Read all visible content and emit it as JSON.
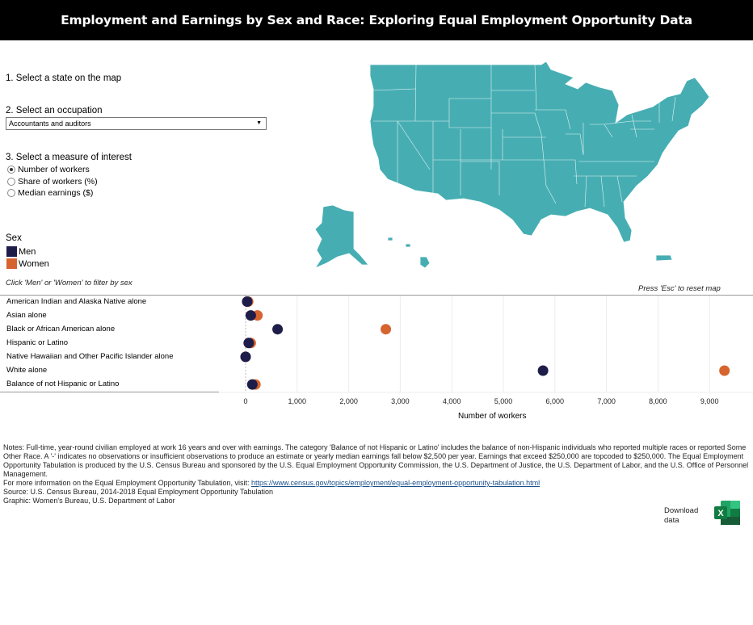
{
  "header": {
    "title": "Employment and Earnings by Sex and Race: Exploring Equal Employment Opportunity Data"
  },
  "controls": {
    "step1": "1. Select a state on the map",
    "step2": "2. Select an occupation",
    "occupation_selected": "Accountants and auditors",
    "step3": "3. Select a measure of interest",
    "measures": [
      {
        "label": "Number of workers",
        "selected": true
      },
      {
        "label": "Share of workers (%)",
        "selected": false
      },
      {
        "label": "Median earnings ($)",
        "selected": false
      }
    ]
  },
  "legend": {
    "title": "Sex",
    "items": [
      {
        "label": "Men",
        "color": "#1e1d4a"
      },
      {
        "label": "Women",
        "color": "#d5642f"
      }
    ],
    "hint": "Click 'Men' or 'Women' to filter by sex"
  },
  "map": {
    "fill_color": "#46aeb3",
    "border_color": "#ffffff",
    "reset_hint": "Press 'Esc' to reset map"
  },
  "chart_data": {
    "type": "scatter",
    "title": "",
    "xlabel": "Number of workers",
    "ylabel": "",
    "xlim": [
      -500,
      9700
    ],
    "x_ticks": [
      0,
      1000,
      2000,
      3000,
      4000,
      5000,
      6000,
      7000,
      8000,
      9000
    ],
    "x_tick_labels": [
      "0",
      "1,000",
      "2,000",
      "3,000",
      "4,000",
      "5,000",
      "6,000",
      "7,000",
      "8,000",
      "9,000"
    ],
    "grid": true,
    "categories": [
      "American Indian and Alaska Native alone",
      "Asian alone",
      "Black or African American alone",
      "Hispanic or Latino",
      "Native Hawaiian and Other Pacific Islander alone",
      "White alone",
      "Balance of not Hispanic or Latino"
    ],
    "series": [
      {
        "name": "Women",
        "color": "#d5642f",
        "values": [
          50,
          230,
          2720,
          100,
          0,
          9290,
          190
        ]
      },
      {
        "name": "Men",
        "color": "#1e1d4a",
        "values": [
          30,
          100,
          620,
          60,
          0,
          5770,
          130
        ]
      }
    ]
  },
  "notes": {
    "line1": "Notes: Full-time, year-round civilian employed at work 16 years and over with earnings. The category 'Balance of not Hispanic or Latino' includes the balance of non-Hispanic individuals who reported multiple races or reported Some Other Race. A '-' indicates no observations or insufficient observations to produce an estimate or yearly median earnings fall below $2,500 per year. Earnings that exceed $250,000 are topcoded to $250,000. The Equal Employment Opportunity Tabulation is produced by the U.S. Census Bureau and sponsored by the U.S. Equal Employment Opportunity Commission, the U.S. Department of Justice, the U.S. Department of Labor, and the U.S. Office of Personnel Management.",
    "more_info_prefix": "For more information on the Equal Employment Opportunity Tabulation, visit: ",
    "more_info_link": "https://www.census.gov/topics/employment/equal-employment-opportunity-tabulation.html",
    "source": "Source: U.S. Census Bureau, 2014-2018 Equal Employment Opportunity Tabulation",
    "graphic": "Graphic: Women's Bureau, U.S. Department of Labor"
  },
  "download": {
    "label_line1": "Download",
    "label_line2": "data",
    "icon": "excel-icon"
  }
}
